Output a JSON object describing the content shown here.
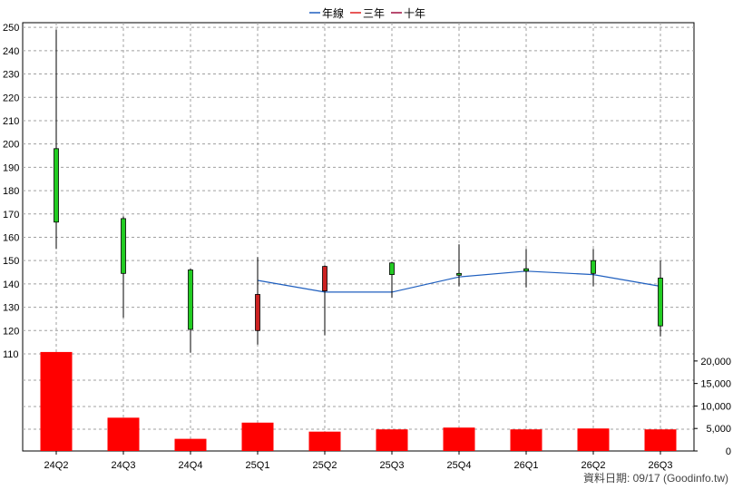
{
  "legend": [
    {
      "label": "年線",
      "color": "#1f5fbf"
    },
    {
      "label": "三年",
      "color": "#e02020"
    },
    {
      "label": "十年",
      "color": "#a01040"
    }
  ],
  "source_text": "資料日期: 09/17  (Goodinfo.tw)",
  "colors": {
    "up": "#22cc22",
    "down": "#cc2222",
    "volume": "#ff0000",
    "ma_line": "#1f5fbf",
    "grid": "#a0a0a0"
  },
  "chart_data": {
    "type": "candlestick_with_volume",
    "categories": [
      "24Q2",
      "24Q3",
      "24Q4",
      "25Q1",
      "25Q2",
      "25Q3",
      "25Q4",
      "26Q1",
      "26Q2",
      "26Q3"
    ],
    "candles": [
      {
        "open": 166.5,
        "high": 249.0,
        "low": 155.0,
        "close": 198.0
      },
      {
        "open": 144.5,
        "high": 169.0,
        "low": 125.5,
        "close": 168.0
      },
      {
        "open": 120.5,
        "high": 146.5,
        "low": 110.5,
        "close": 146.0
      },
      {
        "open": 135.5,
        "high": 151.5,
        "low": 114.0,
        "close": 120.0
      },
      {
        "open": 147.5,
        "high": 148.0,
        "low": 118.0,
        "close": 137.0
      },
      {
        "open": 144.0,
        "high": 149.5,
        "low": 134.0,
        "close": 149.0
      },
      {
        "open": 144.0,
        "high": 157.0,
        "low": 139.0,
        "close": 144.5
      },
      {
        "open": 145.5,
        "high": 155.0,
        "low": 138.5,
        "close": 146.5
      },
      {
        "open": 144.5,
        "high": 155.0,
        "low": 139.0,
        "close": 150.0
      },
      {
        "open": 122.0,
        "high": 150.0,
        "low": 117.5,
        "close": 142.5
      }
    ],
    "ma_line": {
      "name": "年線",
      "values": [
        null,
        null,
        null,
        141.5,
        136.5,
        136.5,
        143.0,
        145.5,
        144.0,
        139.0
      ]
    },
    "volume": [
      22000,
      7400,
      2700,
      6300,
      4300,
      4800,
      5200,
      4800,
      5000,
      4800
    ],
    "price_axis": {
      "min": 110,
      "max": 252,
      "ticks": [
        110,
        120,
        130,
        140,
        150,
        160,
        170,
        180,
        190,
        200,
        210,
        220,
        230,
        240,
        250
      ]
    },
    "volume_axis": {
      "min": 0,
      "max": 24000,
      "ticks": [
        0,
        5000,
        10000,
        15000,
        20000
      ],
      "tick_labels": [
        "0",
        "5,000",
        "10,000",
        "15,000",
        "20,000"
      ]
    }
  }
}
